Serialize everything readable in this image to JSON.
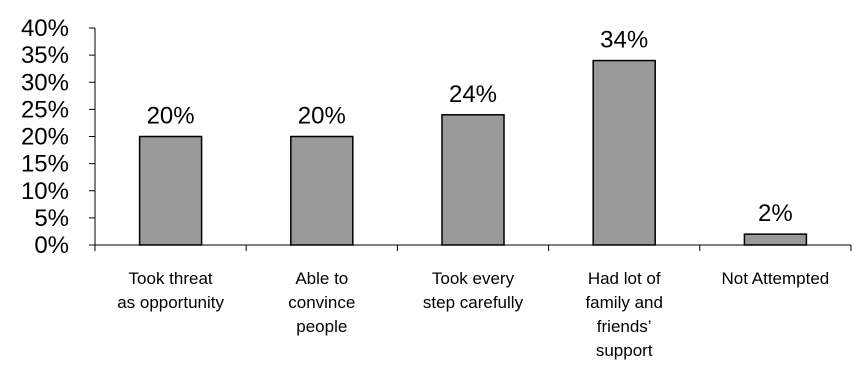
{
  "chart_data": {
    "type": "bar",
    "title": "",
    "xlabel": "",
    "ylabel": "",
    "categories": [
      [
        "Took threat",
        "as opportunity"
      ],
      [
        "Able to",
        "convince",
        "people"
      ],
      [
        "Took every",
        "step carefully"
      ],
      [
        "Had lot of",
        "family and",
        "friends’",
        "support"
      ],
      [
        "Not Attempted"
      ]
    ],
    "values": [
      20,
      20,
      24,
      34,
      2
    ],
    "data_labels": [
      "20%",
      "20%",
      "24%",
      "34%",
      "2%"
    ],
    "yticks": [
      "0%",
      "5%",
      "10%",
      "15%",
      "20%",
      "25%",
      "30%",
      "35%",
      "40%"
    ],
    "ylim": [
      0,
      40
    ],
    "grid": false,
    "legend": "none",
    "bar_color": "#999999"
  }
}
